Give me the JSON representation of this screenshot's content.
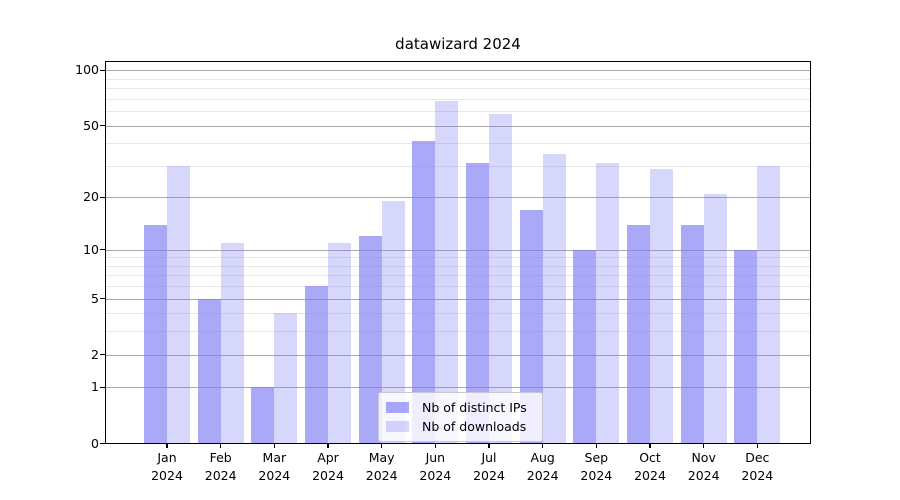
{
  "title": "datawizard 2024",
  "chart_data": {
    "type": "bar",
    "title": "datawizard 2024",
    "categories": [
      "Jan 2024",
      "Feb 2024",
      "Mar 2024",
      "Apr 2024",
      "May 2024",
      "Jun 2024",
      "Jul 2024",
      "Aug 2024",
      "Sep 2024",
      "Oct 2024",
      "Nov 2024",
      "Dec 2024"
    ],
    "x_tick_months": [
      "Jan",
      "Feb",
      "Mar",
      "Apr",
      "May",
      "Jun",
      "Jul",
      "Aug",
      "Sep",
      "Oct",
      "Nov",
      "Dec"
    ],
    "x_tick_year": "2024",
    "series": [
      {
        "name": "Nb of distinct IPs",
        "values": [
          14,
          5,
          1,
          6,
          12,
          41,
          31,
          17,
          10,
          14,
          14,
          10
        ],
        "color": "rgba(123,123,245,0.65)"
      },
      {
        "name": "Nb of downloads",
        "values": [
          30,
          11,
          4,
          11,
          19,
          68,
          58,
          35,
          31,
          29,
          21,
          30
        ],
        "color": "rgba(123,123,245,0.30)"
      }
    ],
    "ylabel": "",
    "xlabel": "",
    "y_axis": {
      "scale": "log10(1+y)",
      "major_ticks": [
        0,
        1,
        2,
        5,
        10,
        20,
        50,
        100
      ],
      "minor_ticks": [
        3,
        4,
        6,
        7,
        8,
        9,
        30,
        40,
        60,
        70,
        80,
        90
      ],
      "ylim": [
        0,
        113
      ]
    },
    "legend": {
      "position": "lower center",
      "labels": [
        "Nb of distinct IPs",
        "Nb of downloads"
      ]
    },
    "grid": true
  },
  "colors": {
    "bar_dark": "rgba(123,123,245,0.65)",
    "bar_light": "rgba(123,123,245,0.30)",
    "grid_major": "#a9a9a9",
    "grid_minor": "#e7e7e7",
    "spine": "#000000",
    "background": "#ffffff",
    "text": "#000000"
  }
}
